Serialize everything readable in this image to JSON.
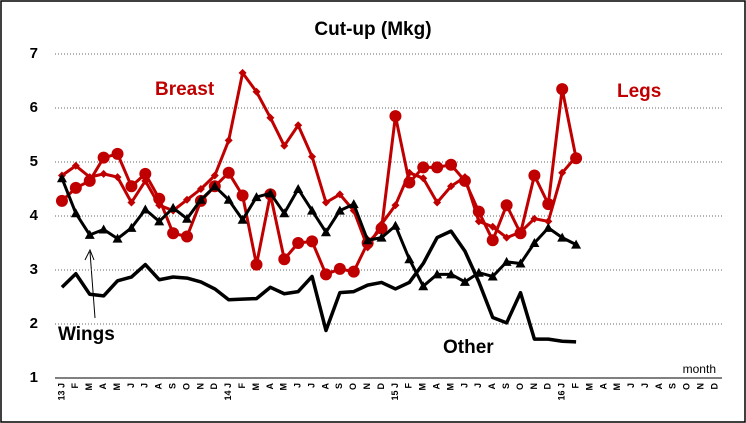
{
  "chart_data": {
    "type": "line",
    "title": "Cut-up (Mkg)",
    "xlabel": "month",
    "categories": [
      "13 J",
      "F",
      "M",
      "A",
      "M",
      "J",
      "J",
      "A",
      "S",
      "O",
      "N",
      "D",
      "14 J",
      "F",
      "M",
      "A",
      "M",
      "J",
      "J",
      "A",
      "S",
      "O",
      "N",
      "D",
      "15 J",
      "F",
      "M",
      "A",
      "M",
      "J",
      "J",
      "A",
      "S",
      "O",
      "N",
      "D",
      "16 J",
      "F",
      "M",
      "A",
      "M",
      "J",
      "J",
      "A",
      "S",
      "O",
      "N",
      "D"
    ],
    "ylim": [
      1,
      7
    ],
    "yticks": [
      1,
      2,
      3,
      4,
      5,
      6,
      7
    ],
    "grid": true,
    "series": [
      {
        "name": "Breast",
        "color": "#c00000",
        "marker": "diamond",
        "values": [
          4.75,
          4.93,
          4.72,
          4.78,
          4.72,
          4.25,
          4.65,
          4.2,
          4.1,
          4.3,
          4.5,
          4.75,
          5.4,
          6.65,
          6.3,
          5.82,
          5.3,
          5.68,
          5.1,
          4.25,
          4.4,
          4.1,
          3.42,
          3.85,
          4.2,
          4.8,
          4.7,
          4.25,
          4.55,
          4.72,
          3.9,
          3.8,
          3.6,
          3.7,
          3.95,
          3.9,
          4.8,
          5.1,
          null,
          null,
          null,
          null,
          null,
          null,
          null,
          null,
          null,
          null
        ]
      },
      {
        "name": "Legs",
        "color": "#c00000",
        "marker": "circle",
        "values": [
          4.28,
          4.52,
          4.65,
          5.08,
          5.15,
          4.55,
          4.78,
          4.32,
          3.68,
          3.62,
          4.28,
          4.55,
          4.8,
          4.38,
          3.1,
          4.4,
          3.2,
          3.5,
          3.53,
          2.92,
          3.02,
          2.97,
          3.5,
          3.77,
          5.85,
          4.62,
          4.9,
          4.9,
          4.95,
          4.65,
          4.08,
          3.55,
          4.2,
          3.68,
          4.75,
          4.22,
          6.35,
          5.07,
          null,
          null,
          null,
          null,
          null,
          null,
          null,
          null,
          null,
          null
        ]
      },
      {
        "name": "Wings",
        "color": "#000000",
        "marker": "triangle",
        "values": [
          4.7,
          4.05,
          3.65,
          3.75,
          3.58,
          3.78,
          4.12,
          3.9,
          4.15,
          3.95,
          4.3,
          4.55,
          4.3,
          3.93,
          4.35,
          4.42,
          4.05,
          4.5,
          4.1,
          3.7,
          4.1,
          4.22,
          3.55,
          3.6,
          3.82,
          3.2,
          2.7,
          2.92,
          2.92,
          2.78,
          2.95,
          2.88,
          3.15,
          3.12,
          3.5,
          3.78,
          3.6,
          3.47,
          null,
          null,
          null,
          null,
          null,
          null,
          null,
          null,
          null,
          null
        ]
      },
      {
        "name": "Other",
        "color": "#000000",
        "marker": "none",
        "values": [
          2.68,
          2.93,
          2.55,
          2.52,
          2.8,
          2.87,
          3.1,
          2.82,
          2.87,
          2.85,
          2.78,
          2.65,
          2.45,
          2.46,
          2.47,
          2.68,
          2.56,
          2.6,
          2.88,
          1.88,
          2.58,
          2.6,
          2.72,
          2.77,
          2.65,
          2.77,
          3.12,
          3.6,
          3.72,
          3.35,
          2.78,
          2.12,
          2.02,
          2.58,
          1.72,
          1.72,
          1.68,
          1.67,
          null,
          null,
          null,
          null,
          null,
          null,
          null,
          null,
          null,
          null
        ]
      }
    ]
  }
}
